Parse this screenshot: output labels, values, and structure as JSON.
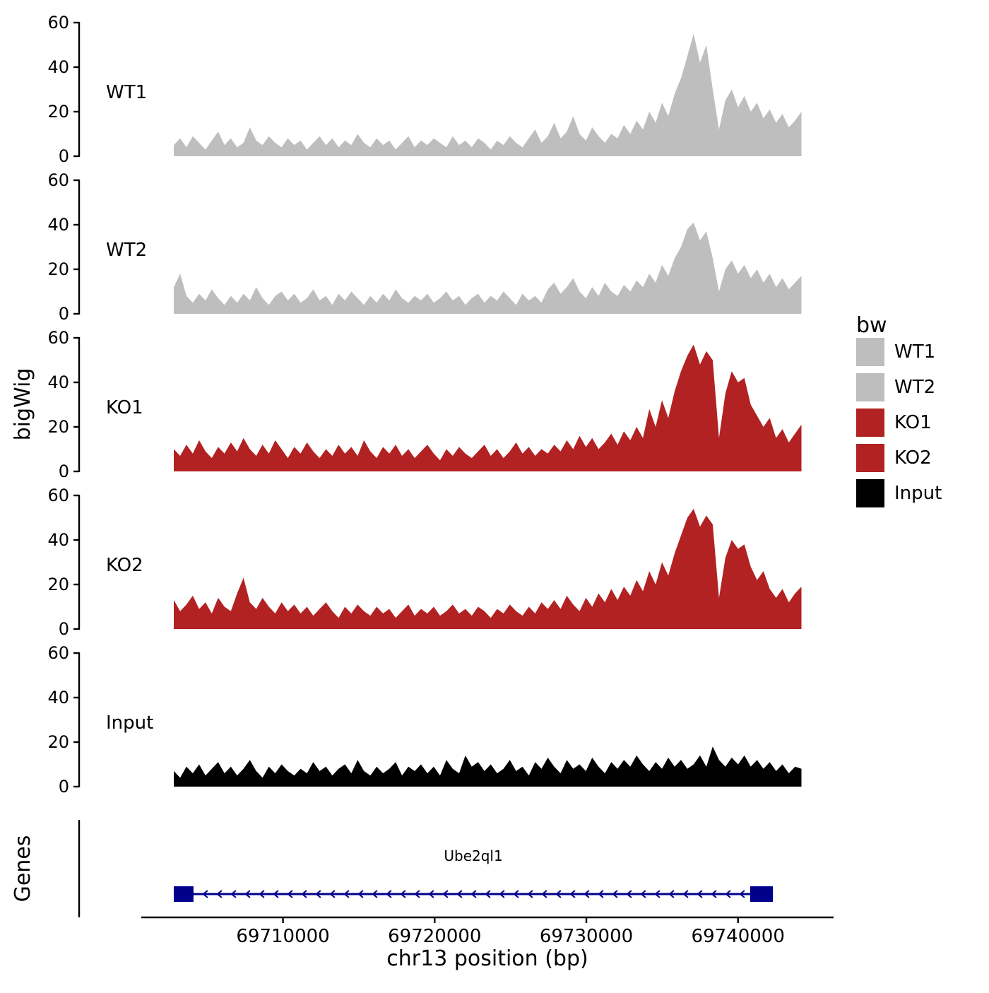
{
  "figure": {
    "y_axis_title": "bigWig",
    "genes_panel_title": "Genes",
    "x_axis_title": "chr13 position (bp)"
  },
  "legend": {
    "title": "bw",
    "items": [
      {
        "label": "WT1",
        "color": "#BEBEBE"
      },
      {
        "label": "WT2",
        "color": "#BEBEBE"
      },
      {
        "label": "KO1",
        "color": "#B22222"
      },
      {
        "label": "KO2",
        "color": "#B22222"
      },
      {
        "label": "Input",
        "color": "#000000"
      }
    ]
  },
  "chart_data": {
    "type": "area",
    "title": "",
    "xlabel": "chr13 position (bp)",
    "ylabel": "bigWig",
    "x_domain": [
      69696700,
      69746300
    ],
    "x_ticks": [
      69710000,
      69720000,
      69730000,
      69740000
    ],
    "x_tick_labels": [
      "69710000",
      "69720000",
      "69730000",
      "69740000"
    ],
    "ylim": [
      0,
      60
    ],
    "y_ticks": [
      0,
      20,
      40,
      60
    ],
    "signal_x_start": 69702800,
    "signal_x_step": 418,
    "tracks": [
      {
        "name": "WT1",
        "color": "#BEBEBE",
        "values": [
          5,
          8,
          4,
          9,
          6,
          3,
          7,
          11,
          5,
          8,
          4,
          6,
          13,
          7,
          5,
          9,
          6,
          4,
          8,
          5,
          7,
          3,
          6,
          9,
          5,
          8,
          4,
          7,
          5,
          10,
          6,
          4,
          8,
          5,
          7,
          3,
          6,
          9,
          4,
          7,
          5,
          8,
          6,
          4,
          9,
          5,
          7,
          4,
          8,
          6,
          3,
          7,
          5,
          9,
          6,
          4,
          8,
          12,
          6,
          9,
          15,
          8,
          11,
          18,
          10,
          7,
          13,
          9,
          6,
          10,
          8,
          14,
          10,
          16,
          12,
          20,
          15,
          24,
          18,
          28,
          35,
          45,
          55,
          42,
          50,
          30,
          12,
          25,
          30,
          22,
          27,
          20,
          24,
          17,
          21,
          15,
          19,
          13,
          16,
          20
        ]
      },
      {
        "name": "WT2",
        "color": "#BEBEBE",
        "values": [
          12,
          18,
          8,
          5,
          9,
          6,
          11,
          7,
          4,
          8,
          5,
          9,
          6,
          12,
          7,
          4,
          8,
          10,
          6,
          9,
          5,
          7,
          11,
          6,
          8,
          4,
          9,
          6,
          10,
          7,
          4,
          8,
          5,
          9,
          6,
          11,
          7,
          5,
          8,
          6,
          9,
          5,
          7,
          10,
          6,
          8,
          4,
          7,
          9,
          5,
          8,
          6,
          10,
          7,
          4,
          9,
          6,
          8,
          5,
          11,
          14,
          9,
          12,
          16,
          10,
          7,
          12,
          8,
          14,
          10,
          8,
          13,
          10,
          15,
          12,
          18,
          14,
          22,
          17,
          25,
          30,
          38,
          41,
          33,
          37,
          25,
          10,
          20,
          24,
          18,
          22,
          16,
          20,
          14,
          18,
          12,
          16,
          11,
          14,
          17
        ]
      },
      {
        "name": "KO1",
        "color": "#B22222",
        "values": [
          10,
          7,
          12,
          8,
          14,
          9,
          6,
          11,
          8,
          13,
          9,
          15,
          10,
          7,
          12,
          8,
          14,
          10,
          6,
          11,
          8,
          13,
          9,
          6,
          10,
          7,
          12,
          8,
          11,
          7,
          14,
          9,
          6,
          11,
          8,
          12,
          7,
          10,
          6,
          9,
          12,
          8,
          5,
          10,
          7,
          11,
          8,
          6,
          9,
          12,
          7,
          10,
          6,
          9,
          13,
          8,
          11,
          7,
          10,
          8,
          12,
          9,
          14,
          10,
          16,
          11,
          15,
          10,
          13,
          17,
          12,
          18,
          14,
          20,
          15,
          28,
          20,
          32,
          24,
          36,
          45,
          52,
          57,
          48,
          54,
          50,
          15,
          35,
          45,
          40,
          42,
          30,
          25,
          20,
          24,
          15,
          19,
          13,
          17,
          21
        ]
      },
      {
        "name": "KO2",
        "color": "#B22222",
        "values": [
          13,
          8,
          11,
          15,
          9,
          12,
          7,
          14,
          10,
          8,
          16,
          23,
          12,
          9,
          14,
          10,
          7,
          12,
          8,
          11,
          7,
          10,
          6,
          9,
          12,
          8,
          5,
          10,
          7,
          11,
          8,
          6,
          10,
          7,
          9,
          5,
          8,
          11,
          6,
          9,
          7,
          10,
          6,
          8,
          11,
          7,
          9,
          6,
          10,
          8,
          5,
          9,
          7,
          11,
          8,
          6,
          10,
          7,
          12,
          9,
          13,
          9,
          15,
          11,
          8,
          14,
          10,
          16,
          12,
          18,
          13,
          19,
          15,
          22,
          17,
          26,
          20,
          30,
          24,
          34,
          42,
          50,
          54,
          46,
          51,
          47,
          14,
          32,
          40,
          36,
          38,
          28,
          22,
          26,
          18,
          14,
          18,
          12,
          16,
          19
        ]
      },
      {
        "name": "Input",
        "color": "#000000",
        "values": [
          7,
          4,
          9,
          6,
          10,
          5,
          8,
          11,
          6,
          9,
          5,
          8,
          12,
          7,
          4,
          9,
          6,
          10,
          7,
          5,
          8,
          6,
          11,
          7,
          9,
          5,
          8,
          10,
          6,
          12,
          7,
          5,
          9,
          6,
          8,
          11,
          5,
          9,
          7,
          10,
          6,
          9,
          5,
          12,
          8,
          6,
          14,
          9,
          11,
          7,
          10,
          6,
          8,
          12,
          7,
          9,
          5,
          11,
          8,
          13,
          9,
          6,
          12,
          8,
          10,
          7,
          13,
          9,
          6,
          11,
          8,
          12,
          9,
          14,
          10,
          7,
          11,
          8,
          13,
          9,
          12,
          8,
          10,
          14,
          9,
          18,
          12,
          9,
          13,
          10,
          14,
          9,
          12,
          8,
          11,
          7,
          10,
          6,
          9,
          8
        ]
      }
    ],
    "gene_track": {
      "panel_label": "Genes",
      "gene": {
        "name": "Ube2ql1",
        "strand": "-",
        "start": 69702800,
        "end": 69742300,
        "exons": [
          [
            69702800,
            69704100
          ],
          [
            69740800,
            69742300
          ]
        ],
        "color": "#00008B"
      }
    }
  }
}
